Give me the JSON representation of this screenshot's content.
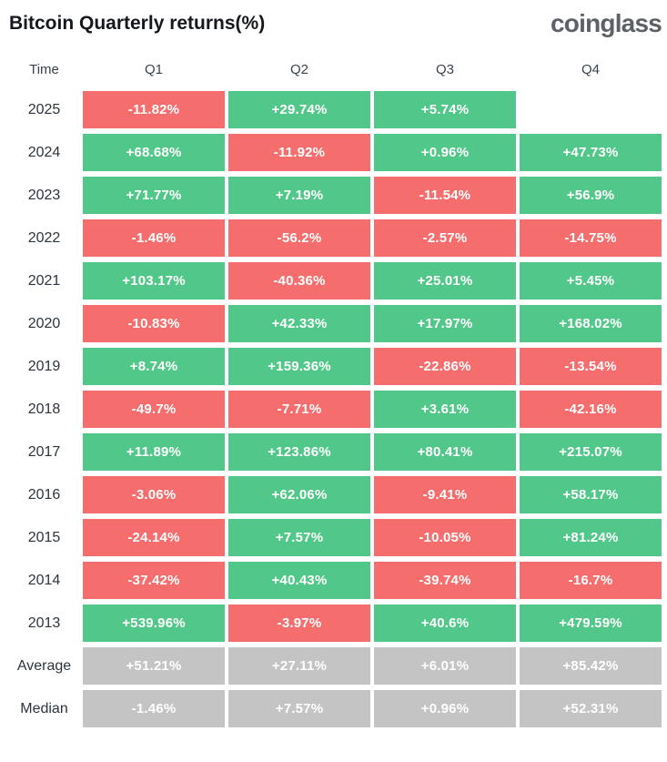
{
  "header": {
    "title": "Bitcoin Quarterly returns(%)",
    "logo_text": "coinglass"
  },
  "colors": {
    "positive": "#52c78a",
    "negative": "#f66d6d",
    "neutral": "#c4c4c4",
    "cell_text": "#ffffff",
    "title_text": "#15181d",
    "logo_text": "#5d6167",
    "label_text": "#2c343d"
  },
  "chart_data": {
    "type": "table",
    "title": "Bitcoin Quarterly returns(%)",
    "units": "%",
    "legend": "green = positive return, red = negative return, gray = summary rows",
    "columns": [
      "Time",
      "Q1",
      "Q2",
      "Q3",
      "Q4"
    ],
    "rows": [
      {
        "label": "2025",
        "summary": false,
        "cells": [
          {
            "display": "-11.82%",
            "value": -11.82
          },
          {
            "display": "+29.74%",
            "value": 29.74
          },
          {
            "display": "+5.74%",
            "value": 5.74
          },
          null
        ]
      },
      {
        "label": "2024",
        "summary": false,
        "cells": [
          {
            "display": "+68.68%",
            "value": 68.68
          },
          {
            "display": "-11.92%",
            "value": -11.92
          },
          {
            "display": "+0.96%",
            "value": 0.96
          },
          {
            "display": "+47.73%",
            "value": 47.73
          }
        ]
      },
      {
        "label": "2023",
        "summary": false,
        "cells": [
          {
            "display": "+71.77%",
            "value": 71.77
          },
          {
            "display": "+7.19%",
            "value": 7.19
          },
          {
            "display": "-11.54%",
            "value": -11.54
          },
          {
            "display": "+56.9%",
            "value": 56.9
          }
        ]
      },
      {
        "label": "2022",
        "summary": false,
        "cells": [
          {
            "display": "-1.46%",
            "value": -1.46
          },
          {
            "display": "-56.2%",
            "value": -56.2
          },
          {
            "display": "-2.57%",
            "value": -2.57
          },
          {
            "display": "-14.75%",
            "value": -14.75
          }
        ]
      },
      {
        "label": "2021",
        "summary": false,
        "cells": [
          {
            "display": "+103.17%",
            "value": 103.17
          },
          {
            "display": "-40.36%",
            "value": -40.36
          },
          {
            "display": "+25.01%",
            "value": 25.01
          },
          {
            "display": "+5.45%",
            "value": 5.45
          }
        ]
      },
      {
        "label": "2020",
        "summary": false,
        "cells": [
          {
            "display": "-10.83%",
            "value": -10.83
          },
          {
            "display": "+42.33%",
            "value": 42.33
          },
          {
            "display": "+17.97%",
            "value": 17.97
          },
          {
            "display": "+168.02%",
            "value": 168.02
          }
        ]
      },
      {
        "label": "2019",
        "summary": false,
        "cells": [
          {
            "display": "+8.74%",
            "value": 8.74
          },
          {
            "display": "+159.36%",
            "value": 159.36
          },
          {
            "display": "-22.86%",
            "value": -22.86
          },
          {
            "display": "-13.54%",
            "value": -13.54
          }
        ]
      },
      {
        "label": "2018",
        "summary": false,
        "cells": [
          {
            "display": "-49.7%",
            "value": -49.7
          },
          {
            "display": "-7.71%",
            "value": -7.71
          },
          {
            "display": "+3.61%",
            "value": 3.61
          },
          {
            "display": "-42.16%",
            "value": -42.16
          }
        ]
      },
      {
        "label": "2017",
        "summary": false,
        "cells": [
          {
            "display": "+11.89%",
            "value": 11.89
          },
          {
            "display": "+123.86%",
            "value": 123.86
          },
          {
            "display": "+80.41%",
            "value": 80.41
          },
          {
            "display": "+215.07%",
            "value": 215.07
          }
        ]
      },
      {
        "label": "2016",
        "summary": false,
        "cells": [
          {
            "display": "-3.06%",
            "value": -3.06
          },
          {
            "display": "+62.06%",
            "value": 62.06
          },
          {
            "display": "-9.41%",
            "value": -9.41
          },
          {
            "display": "+58.17%",
            "value": 58.17
          }
        ]
      },
      {
        "label": "2015",
        "summary": false,
        "cells": [
          {
            "display": "-24.14%",
            "value": -24.14
          },
          {
            "display": "+7.57%",
            "value": 7.57
          },
          {
            "display": "-10.05%",
            "value": -10.05
          },
          {
            "display": "+81.24%",
            "value": 81.24
          }
        ]
      },
      {
        "label": "2014",
        "summary": false,
        "cells": [
          {
            "display": "-37.42%",
            "value": -37.42
          },
          {
            "display": "+40.43%",
            "value": 40.43
          },
          {
            "display": "-39.74%",
            "value": -39.74
          },
          {
            "display": "-16.7%",
            "value": -16.7
          }
        ]
      },
      {
        "label": "2013",
        "summary": false,
        "cells": [
          {
            "display": "+539.96%",
            "value": 539.96
          },
          {
            "display": "-3.97%",
            "value": -3.97
          },
          {
            "display": "+40.6%",
            "value": 40.6
          },
          {
            "display": "+479.59%",
            "value": 479.59
          }
        ]
      },
      {
        "label": "Average",
        "summary": true,
        "cells": [
          {
            "display": "+51.21%",
            "value": 51.21
          },
          {
            "display": "+27.11%",
            "value": 27.11
          },
          {
            "display": "+6.01%",
            "value": 6.01
          },
          {
            "display": "+85.42%",
            "value": 85.42
          }
        ]
      },
      {
        "label": "Median",
        "summary": true,
        "cells": [
          {
            "display": "-1.46%",
            "value": -1.46
          },
          {
            "display": "+7.57%",
            "value": 7.57
          },
          {
            "display": "+0.96%",
            "value": 0.96
          },
          {
            "display": "+52.31%",
            "value": 52.31
          }
        ]
      }
    ]
  }
}
